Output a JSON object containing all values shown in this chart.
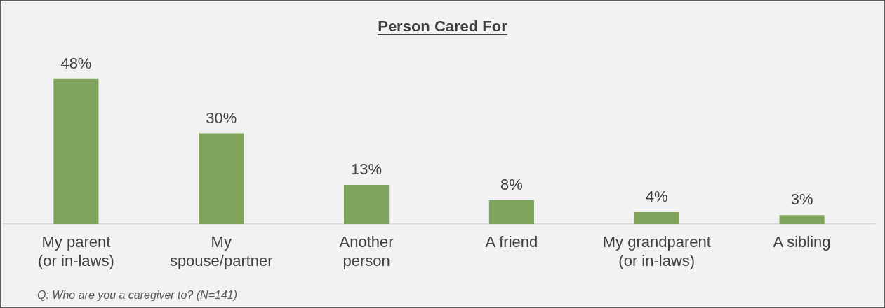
{
  "chart_data": {
    "type": "bar",
    "title": "Person Cared For",
    "categories": [
      "My parent\n(or in-laws)",
      "My\nspouse/partner",
      "Another\nperson",
      "A friend",
      "My grandparent\n(or in-laws)",
      "A sibling"
    ],
    "values": [
      48,
      30,
      13,
      8,
      4,
      3
    ],
    "value_labels": [
      "48%",
      "30%",
      "13%",
      "8%",
      "4%",
      "3%"
    ],
    "color": "#7fa35a",
    "annotations": [
      "Q: Who are you a caregiver to? (N=141)"
    ],
    "grid": false,
    "legend": false
  }
}
